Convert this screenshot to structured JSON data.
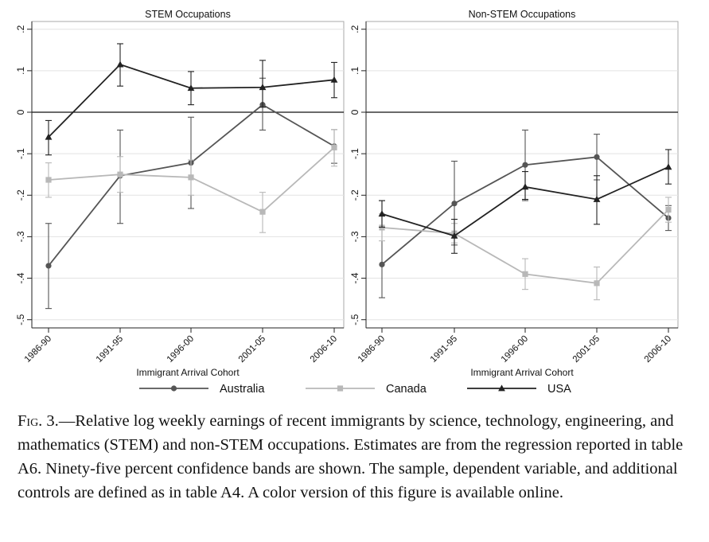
{
  "chart_data": [
    {
      "type": "line",
      "title": "STEM Occupations",
      "xlabel": "Immigrant Arrival Cohort",
      "ylabel": "",
      "categories": [
        "1986-90",
        "1991-95",
        "1996-00",
        "2001-05",
        "2006-10"
      ],
      "yticks": [
        ".2",
        ".1",
        "0",
        "-.1",
        "-.2",
        "-.3",
        "-.4",
        "-.5"
      ],
      "ylim": [
        -0.5,
        0.2
      ],
      "reference_line": 0,
      "grid": "horizontal",
      "series": [
        {
          "name": "Australia",
          "color": "#555555",
          "marker": "circle",
          "values": [
            -0.37,
            -0.153,
            -0.122,
            0.018,
            -0.082
          ],
          "ci_low": [
            -0.473,
            -0.268,
            -0.232,
            -0.043,
            -0.123
          ],
          "ci_high": [
            -0.268,
            -0.043,
            -0.012,
            0.082,
            -0.042
          ]
        },
        {
          "name": "Canada",
          "color": "#b8b8b8",
          "marker": "square",
          "values": [
            -0.163,
            -0.15,
            -0.157,
            -0.24,
            -0.085
          ],
          "ci_low": [
            -0.205,
            -0.193,
            -0.2,
            -0.29,
            -0.13
          ],
          "ci_high": [
            -0.122,
            -0.107,
            -0.115,
            -0.193,
            -0.042
          ]
        },
        {
          "name": "USA",
          "color": "#222222",
          "marker": "triangle",
          "values": [
            -0.06,
            0.115,
            0.058,
            0.06,
            0.078
          ],
          "ci_low": [
            -0.103,
            0.063,
            0.018,
            0.012,
            0.035
          ],
          "ci_high": [
            -0.02,
            0.165,
            0.098,
            0.125,
            0.12
          ]
        }
      ]
    },
    {
      "type": "line",
      "title": "Non-STEM Occupations",
      "xlabel": "Immigrant Arrival Cohort",
      "ylabel": "",
      "categories": [
        "1986-90",
        "1991-95",
        "1996-00",
        "2001-05",
        "2006-10"
      ],
      "yticks": [
        ".2",
        ".1",
        "0",
        "-.1",
        "-.2",
        "-.3",
        "-.4",
        "-.5"
      ],
      "ylim": [
        -0.5,
        0.2
      ],
      "reference_line": 0,
      "grid": "horizontal",
      "series": [
        {
          "name": "Australia",
          "color": "#555555",
          "marker": "circle",
          "values": [
            -0.367,
            -0.22,
            -0.127,
            -0.108,
            -0.255
          ],
          "ci_low": [
            -0.447,
            -0.32,
            -0.213,
            -0.163,
            -0.285
          ],
          "ci_high": [
            -0.213,
            -0.118,
            -0.043,
            -0.053,
            -0.225
          ]
        },
        {
          "name": "Canada",
          "color": "#b8b8b8",
          "marker": "square",
          "values": [
            -0.278,
            -0.292,
            -0.39,
            -0.412,
            -0.235
          ],
          "ci_low": [
            -0.31,
            -0.315,
            -0.427,
            -0.452,
            -0.265
          ],
          "ci_high": [
            -0.245,
            -0.268,
            -0.353,
            -0.373,
            -0.205
          ]
        },
        {
          "name": "USA",
          "color": "#222222",
          "marker": "triangle",
          "values": [
            -0.245,
            -0.298,
            -0.18,
            -0.21,
            -0.132
          ],
          "ci_low": [
            -0.277,
            -0.34,
            -0.21,
            -0.27,
            -0.173
          ],
          "ci_high": [
            -0.213,
            -0.258,
            -0.143,
            -0.153,
            -0.09
          ]
        }
      ]
    }
  ],
  "legend": {
    "placement": "bottom",
    "entries": [
      "Australia",
      "Canada",
      "USA"
    ]
  },
  "caption": {
    "label": "Fig. 3.",
    "text": "—Relative log weekly earnings of recent immigrants by science, technology, engineering, and mathematics (STEM) and non-STEM occupations. Estimates are from the regression reported in table A6. Ninety-five percent confidence bands are shown. The sample, dependent variable, and additional controls are defined as in table A4. A color version of this figure is available online."
  }
}
